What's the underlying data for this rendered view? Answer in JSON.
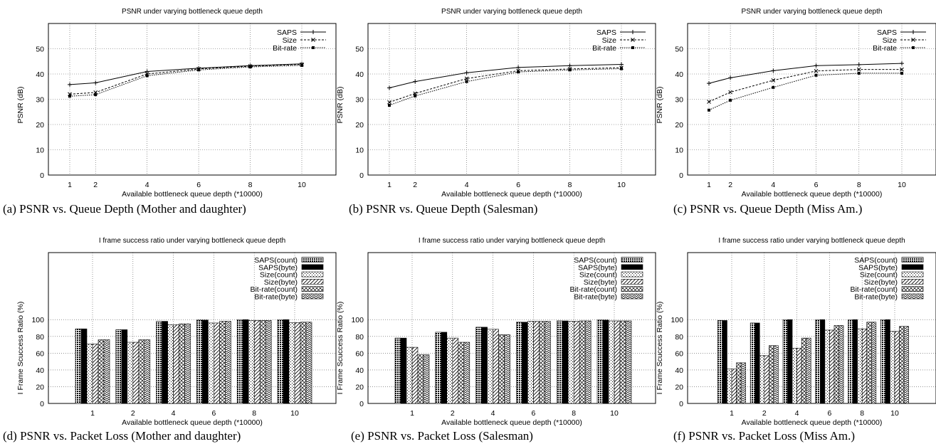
{
  "categories": [
    "1",
    "2",
    "4",
    "6",
    "8",
    "10"
  ],
  "chart_data": [
    {
      "type": "line",
      "title": "PSNR under varying bottleneck queue depth",
      "xlabel": "Available bottleneck queue depth (*10000)",
      "ylabel": "PSNR (dB)",
      "x": [
        1,
        2,
        4,
        6,
        8,
        10
      ],
      "ylim": [
        0,
        60
      ],
      "yticks": [
        0,
        10,
        20,
        30,
        40,
        50
      ],
      "legend": "top-right",
      "caption": "(a) PSNR vs. Queue Depth (Mother and daughter)",
      "series": [
        {
          "name": "SAPS",
          "values": [
            35.8,
            36.5,
            41.0,
            42.3,
            43.3,
            44.0
          ]
        },
        {
          "name": "Size",
          "values": [
            32.0,
            32.7,
            40.0,
            42.0,
            43.1,
            43.8
          ]
        },
        {
          "name": "Bit-rate",
          "values": [
            31.2,
            31.8,
            39.3,
            41.6,
            42.8,
            43.4
          ]
        }
      ]
    },
    {
      "type": "line",
      "title": "PSNR under varying bottleneck queue depth",
      "xlabel": "Available bottleneck queue depth (*10000)",
      "ylabel": "PSNR (dB)",
      "x": [
        1,
        2,
        4,
        6,
        8,
        10
      ],
      "ylim": [
        0,
        60
      ],
      "yticks": [
        0,
        10,
        20,
        30,
        40,
        50
      ],
      "legend": "top-right",
      "caption": "(b) PSNR vs. Queue Depth (Salesman)",
      "series": [
        {
          "name": "SAPS",
          "values": [
            34.5,
            37.0,
            40.5,
            42.6,
            43.3,
            43.8
          ]
        },
        {
          "name": "Size",
          "values": [
            28.8,
            32.3,
            38.2,
            41.3,
            42.0,
            42.5
          ]
        },
        {
          "name": "Bit-rate",
          "values": [
            27.6,
            31.3,
            37.0,
            40.8,
            41.6,
            42.1
          ]
        }
      ]
    },
    {
      "type": "line",
      "title": "PSNR under varying bottleneck queue depth",
      "xlabel": "Available bottleneck queue depth (*10000)",
      "ylabel": "PSNR (dB)",
      "x": [
        1,
        2,
        4,
        6,
        8,
        10
      ],
      "ylim": [
        0,
        60
      ],
      "yticks": [
        0,
        10,
        20,
        30,
        40,
        50
      ],
      "legend": "top-right",
      "caption": "(c) PSNR vs. Queue Depth (Miss Am.)",
      "series": [
        {
          "name": "SAPS",
          "values": [
            36.3,
            38.5,
            41.3,
            43.3,
            43.7,
            44.2
          ]
        },
        {
          "name": "Size",
          "values": [
            29.0,
            32.8,
            37.5,
            41.2,
            41.8,
            41.8
          ]
        },
        {
          "name": "Bit-rate",
          "values": [
            25.7,
            29.6,
            34.7,
            39.5,
            40.3,
            40.3
          ]
        }
      ]
    },
    {
      "type": "bar",
      "title": "I frame success ratio under varying bottleneck queue depth",
      "xlabel": "Available bottleneck queue depth (*10000)",
      "ylabel": "I Frame Scuccess Ratio (%)",
      "categories": [
        "1",
        "2",
        "4",
        "6",
        "8",
        "10"
      ],
      "ylim": [
        0,
        180
      ],
      "yticks": [
        0,
        20,
        40,
        60,
        80,
        100
      ],
      "legend": "top-right",
      "caption": "(d) PSNR vs. Packet Loss (Mother and daughter)",
      "series": [
        {
          "name": "SAPS(count)",
          "values": [
            89,
            88,
            98,
            99.5,
            100,
            100
          ]
        },
        {
          "name": "SAPS(byte)",
          "values": [
            89,
            88,
            98,
            99.5,
            100,
            100
          ]
        },
        {
          "name": "Size(count)",
          "values": [
            71,
            73,
            94,
            96,
            99,
            96.5
          ]
        },
        {
          "name": "Size(byte)",
          "values": [
            71,
            73,
            94,
            96,
            99,
            96.5
          ]
        },
        {
          "name": "Bit-rate(count)",
          "values": [
            76,
            76,
            95,
            98,
            99,
            97
          ]
        },
        {
          "name": "Bit-rate(byte)",
          "values": [
            76,
            76,
            95,
            98,
            99,
            97
          ]
        }
      ]
    },
    {
      "type": "bar",
      "title": "I frame success ratio under varying bottleneck queue depth",
      "xlabel": "Available bottleneck queue depth (*10000)",
      "ylabel": "I Frame Scuccess Ratio (%)",
      "categories": [
        "1",
        "2",
        "4",
        "6",
        "8",
        "10"
      ],
      "ylim": [
        0,
        180
      ],
      "yticks": [
        0,
        20,
        40,
        60,
        80,
        100
      ],
      "legend": "top-right",
      "caption": "(e) PSNR vs. Packet Loss (Salesman)",
      "series": [
        {
          "name": "SAPS(count)",
          "values": [
            78,
            85,
            91,
            97,
            98.5,
            99.5
          ]
        },
        {
          "name": "SAPS(byte)",
          "values": [
            78,
            85,
            91,
            97,
            98.5,
            99.5
          ]
        },
        {
          "name": "Size(count)",
          "values": [
            67,
            78,
            88.5,
            98,
            98,
            98.5
          ]
        },
        {
          "name": "Size(byte)",
          "values": [
            67,
            78,
            88.5,
            98,
            98,
            98.5
          ]
        },
        {
          "name": "Bit-rate(count)",
          "values": [
            58,
            73,
            82,
            98,
            98.5,
            98.5
          ]
        },
        {
          "name": "Bit-rate(byte)",
          "values": [
            58,
            73,
            82,
            98,
            98.5,
            98.5
          ]
        }
      ]
    },
    {
      "type": "bar",
      "title": "I frame success ratio under varying bottleneck queue depth",
      "xlabel": "Available bottleneck queue depth (*10000)",
      "ylabel": "I Frame Scuccess Ratio (%)",
      "categories": [
        "1",
        "2",
        "4",
        "6",
        "8",
        "10"
      ],
      "ylim": [
        0,
        180
      ],
      "yticks": [
        0,
        20,
        40,
        60,
        80,
        100
      ],
      "legend": "top-right",
      "caption": "(f) PSNR vs. Packet Loss (Miss Am.)",
      "series": [
        {
          "name": "SAPS(count)",
          "values": [
            99,
            96,
            100,
            100,
            100,
            100
          ]
        },
        {
          "name": "SAPS(byte)",
          "values": [
            99,
            96,
            100,
            100,
            100,
            100
          ]
        },
        {
          "name": "Size(count)",
          "values": [
            41,
            57,
            66,
            87.5,
            89,
            86
          ]
        },
        {
          "name": "Size(byte)",
          "values": [
            41,
            57,
            66,
            87.5,
            89,
            86
          ]
        },
        {
          "name": "Bit-rate(count)",
          "values": [
            48.5,
            69,
            78,
            93,
            97,
            92
          ]
        },
        {
          "name": "Bit-rate(byte)",
          "values": [
            48.5,
            69,
            78,
            93,
            97,
            92
          ]
        }
      ]
    }
  ]
}
